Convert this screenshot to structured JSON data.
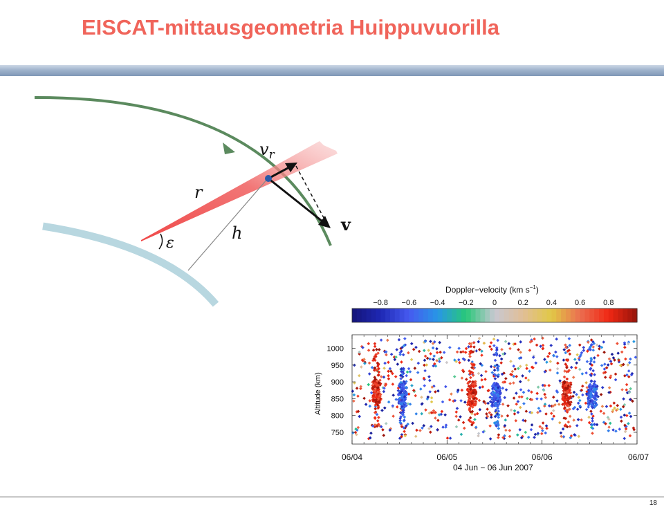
{
  "slide": {
    "title": "EISCAT-mittausgeometria Huippuvuorilla",
    "page_number": "18"
  },
  "diagram": {
    "labels": {
      "vr_main": "v",
      "vr_sub": "r",
      "r": "r",
      "h": "h",
      "epsilon": "ε",
      "v": "v"
    },
    "colors": {
      "title": "#f0645a",
      "orbit": "#5b8a5e",
      "earth": "#b8d7e0",
      "beam": "#f05a5a",
      "satellite": "#2a5aa8"
    }
  },
  "plot": {
    "colorbar": {
      "title": "Doppler−velocity (km s",
      "title_exp": "−1",
      "title_close": ")",
      "ticks": [
        "−0.8",
        "−0.6",
        "−0.4",
        "−0.2",
        "0",
        "0.2",
        "0.4",
        "0.6",
        "0.8"
      ],
      "range": [
        -1,
        1
      ]
    },
    "y_axis": {
      "label": "Altitude (km)",
      "ticks": [
        "1000",
        "950",
        "900",
        "850",
        "800",
        "750"
      ],
      "tick_values": [
        1000,
        950,
        900,
        850,
        800,
        750
      ],
      "range": [
        715,
        1040
      ]
    },
    "x_axis": {
      "ticks": [
        "06/04",
        "06/05",
        "06/06",
        "06/07"
      ],
      "label": "04 Jun − 06 Jun 2007",
      "range_days": [
        0,
        3
      ]
    },
    "scatter_description_clusters": [
      {
        "day_center": 0.26,
        "altitude": 870,
        "velocity": 0.8
      },
      {
        "day_center": 0.53,
        "altitude": 860,
        "velocity": -0.6
      },
      {
        "day_center": 1.26,
        "altitude": 865,
        "velocity": 0.8
      },
      {
        "day_center": 1.52,
        "altitude": 862,
        "velocity": -0.6
      },
      {
        "day_center": 2.26,
        "altitude": 865,
        "velocity": 0.8
      },
      {
        "day_center": 2.53,
        "altitude": 860,
        "velocity": -0.6
      }
    ]
  }
}
